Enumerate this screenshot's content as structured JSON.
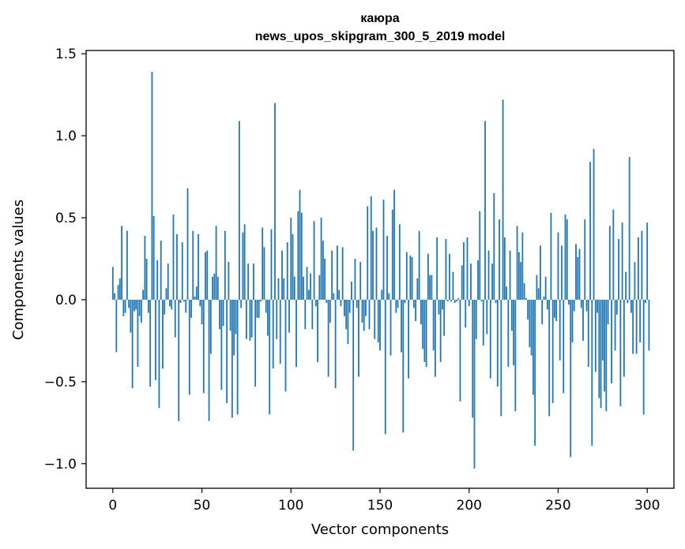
{
  "chart_data": {
    "type": "bar",
    "title_line1": "каюра",
    "title_line2": "news_upos_skipgram_300_5_2019 model",
    "xlabel": "Vector components",
    "ylabel": "Components values",
    "xlim": [
      -15,
      315
    ],
    "ylim": [
      -1.15,
      1.52
    ],
    "xticks": [
      0,
      50,
      100,
      150,
      200,
      250,
      300
    ],
    "xtick_labels": [
      "0",
      "50",
      "100",
      "150",
      "200",
      "250",
      "300"
    ],
    "yticks": [
      -1.0,
      -0.5,
      0.0,
      0.5,
      1.0,
      1.5
    ],
    "ytick_labels": [
      "−1.0",
      "−0.5",
      "0.0",
      "0.5",
      "1.0",
      "1.5"
    ],
    "grid": false,
    "bar_color": "#1f77b4",
    "values": [
      0.2,
      0.04,
      -0.32,
      0.09,
      0.13,
      0.45,
      -0.1,
      -0.08,
      0.42,
      -0.05,
      -0.2,
      -0.54,
      -0.07,
      -0.06,
      -0.41,
      -0.1,
      -0.14,
      0.06,
      0.39,
      0.25,
      -0.08,
      -0.53,
      1.39,
      0.51,
      -0.49,
      0.24,
      -0.66,
      0.36,
      -0.42,
      -0.09,
      0.07,
      0.22,
      -0.04,
      -0.06,
      0.52,
      -0.23,
      0.4,
      -0.74,
      -0.02,
      0.35,
      -0.01,
      -0.08,
      0.68,
      -0.58,
      -0.11,
      0.42,
      0.02,
      0.08,
      0.4,
      -0.04,
      -0.15,
      -0.57,
      0.29,
      0.3,
      -0.74,
      -0.33,
      0.14,
      0.16,
      0.45,
      0.14,
      -0.18,
      -0.55,
      -0.16,
      0.42,
      -0.63,
      0.23,
      -0.19,
      -0.72,
      -0.34,
      -0.21,
      -0.7,
      1.09,
      -0.05,
      0.41,
      0.46,
      -0.24,
      0.22,
      -0.25,
      -0.23,
      0.22,
      -0.53,
      -0.11,
      -0.11,
      -0.01,
      0.44,
      0.32,
      -0.08,
      -0.22,
      -0.7,
      0.43,
      -0.42,
      1.2,
      -0.24,
      0.13,
      -0.39,
      0.3,
      0.13,
      -0.56,
      0.35,
      -0.2,
      0.5,
      0.4,
      0.14,
      -0.41,
      0.54,
      0.67,
      0.53,
      0.14,
      -0.18,
      0.2,
      0.06,
      0.16,
      -0.18,
      0.48,
      -0.04,
      -0.38,
      0.15,
      0.5,
      0.36,
      0.25,
      -0.02,
      -0.47,
      -0.14,
      0.3,
      0.04,
      -0.54,
      0.33,
      0.06,
      -0.04,
      0.32,
      -0.1,
      -0.18,
      -0.27,
      -0.08,
      0.11,
      -0.92,
      0.25,
      -0.05,
      -0.47,
      0.23,
      -0.14,
      -0.19,
      -0.1,
      0.57,
      -0.18,
      0.63,
      0.42,
      -0.24,
      0.44,
      -0.26,
      -0.31,
      0.06,
      0.61,
      -0.82,
      0.39,
      0.04,
      -0.34,
      0.55,
      0.67,
      -0.08,
      -0.05,
      0.46,
      -0.32,
      -0.81,
      -0.02,
      0.29,
      -0.48,
      0.27,
      0.26,
      -0.05,
      -0.13,
      0.13,
      0.42,
      -0.15,
      -0.3,
      -0.38,
      -0.41,
      0.28,
      0.15,
      0.15,
      -0.31,
      -0.47,
      0.38,
      -0.09,
      -0.38,
      -0.06,
      -0.22,
      0.37,
      -0.01,
      0.28,
      -0.01,
      0.17,
      -0.02,
      -0.01,
      0.01,
      -0.62,
      0.21,
      0.35,
      -0.17,
      0.38,
      -0.04,
      0.22,
      -0.72,
      -1.03,
      -0.24,
      0.24,
      0.54,
      -0.01,
      -0.28,
      1.09,
      -0.21,
      0.3,
      -0.48,
      0.22,
      0.65,
      -0.02,
      -0.53,
      0.49,
      -0.71,
      1.22,
      0.38,
      0.08,
      -0.41,
      0.3,
      -0.19,
      -0.4,
      -0.68,
      0.45,
      0.29,
      0.23,
      0.41,
      0.1,
      0.01,
      -0.12,
      -0.29,
      -0.34,
      -0.58,
      -0.89,
      0.15,
      0.07,
      0.33,
      -0.15,
      0.02,
      0.14,
      -0.06,
      -0.71,
      0.53,
      -0.63,
      -0.11,
      -0.13,
      0.41,
      -0.37,
      0.33,
      -0.57,
      0.52,
      0.49,
      -0.03,
      -0.96,
      -0.26,
      -0.07,
      0.34,
      0.26,
      0.31,
      -0.05,
      -0.25,
      0.49,
      -0.07,
      -0.41,
      0.84,
      -0.89,
      0.92,
      -0.44,
      -0.08,
      -0.6,
      -0.66,
      -0.37,
      -0.56,
      -0.68,
      -0.15,
      0.45,
      -0.51,
      0.55,
      -0.31,
      -0.09,
      0.37,
      -0.65,
      0.47,
      -0.47,
      0.17,
      -0.02,
      0.87,
      -0.08,
      -0.33,
      0.23,
      -0.33,
      0.38,
      -0.26,
      0.42,
      -0.7,
      -0.02,
      0.47,
      -0.31
    ]
  }
}
